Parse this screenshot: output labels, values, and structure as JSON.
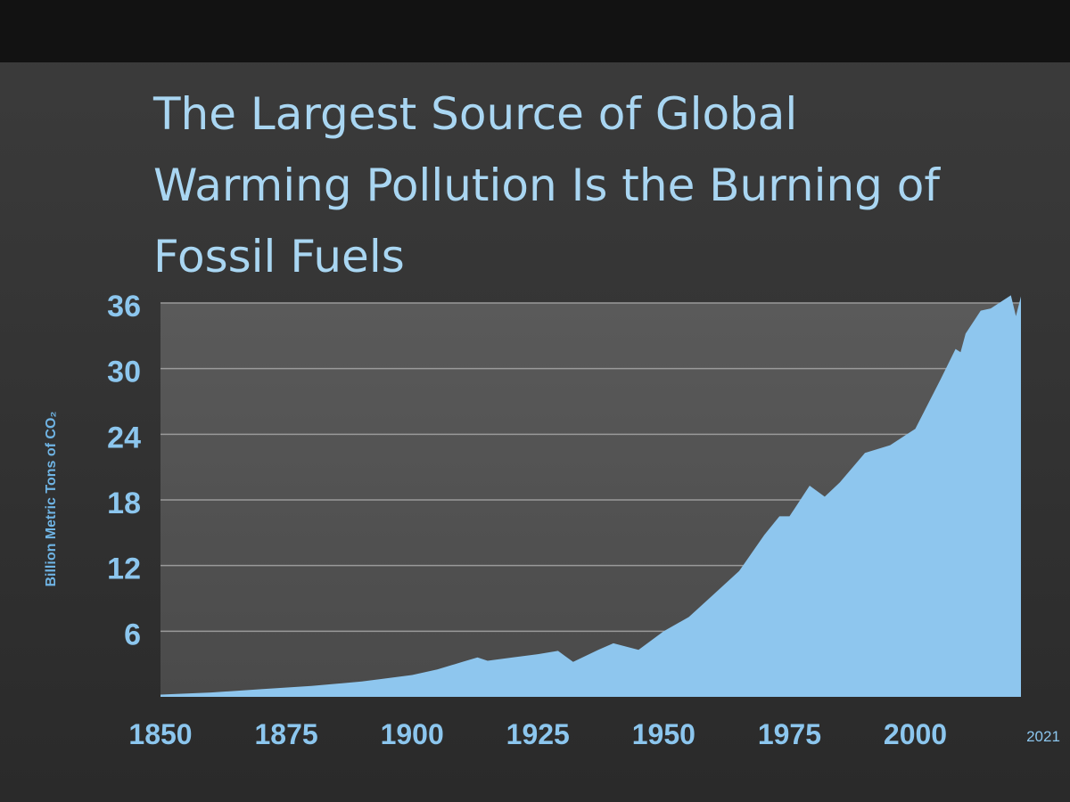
{
  "chart_data": {
    "type": "area",
    "title": [
      "The Largest Source of Global",
      "Warming Pollution Is the Burning of",
      "Fossil Fuels"
    ],
    "y_label": "Billion Metric Tons of CO₂",
    "x": [
      1850,
      1860,
      1870,
      1880,
      1890,
      1900,
      1905,
      1910,
      1913,
      1915,
      1920,
      1925,
      1929,
      1932,
      1937,
      1940,
      1945,
      1950,
      1955,
      1960,
      1965,
      1970,
      1973,
      1975,
      1979,
      1982,
      1985,
      1990,
      1995,
      2000,
      2005,
      2008,
      2009,
      2010,
      2013,
      2015,
      2019,
      2020,
      2021
    ],
    "values": [
      0.2,
      0.4,
      0.7,
      1.0,
      1.4,
      2.0,
      2.5,
      3.2,
      3.6,
      3.3,
      3.6,
      3.9,
      4.2,
      3.2,
      4.3,
      4.9,
      4.3,
      6.0,
      7.3,
      9.4,
      11.5,
      14.8,
      16.5,
      16.5,
      19.3,
      18.3,
      19.6,
      22.3,
      23.0,
      24.5,
      29.0,
      31.8,
      31.5,
      33.2,
      35.3,
      35.5,
      36.7,
      34.8,
      36.6
    ],
    "color": "#8ec6ee",
    "xlim": [
      1850,
      2021
    ],
    "xticks": [
      1850,
      1875,
      1900,
      1925,
      1950,
      1975,
      2000,
      2021
    ],
    "ylim": [
      0,
      36
    ],
    "yticks": [
      6,
      12,
      18,
      24,
      30,
      36
    ],
    "grid": true
  }
}
